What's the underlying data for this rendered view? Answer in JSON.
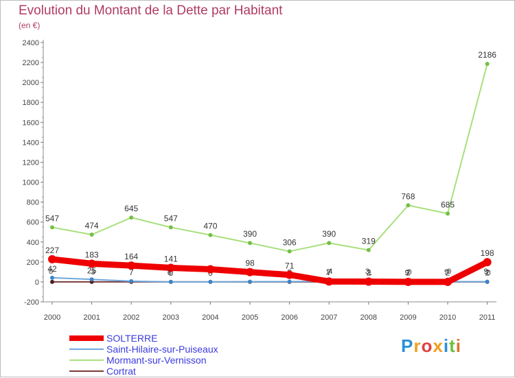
{
  "title": "Evolution du Montant de la Dette par Habitant",
  "unit": "(en €)",
  "logo": {
    "letters": [
      {
        "ch": "P",
        "color": "#2a8fd6"
      },
      {
        "ch": "r",
        "color": "#f0a020"
      },
      {
        "ch": "o",
        "color": "#e04040"
      },
      {
        "ch": "x",
        "color": "#f0a020"
      },
      {
        "ch": "i",
        "color": "#2a8fd6"
      },
      {
        "ch": "t",
        "color": "#6cbf3a"
      },
      {
        "ch": "i",
        "color": "#e07030"
      }
    ]
  },
  "chart_data": {
    "type": "line",
    "title": "Evolution du Montant de la Dette par Habitant",
    "ylabel": "(en €)",
    "xlabel": "",
    "ylim": [
      -200,
      2400
    ],
    "yticks": [
      -200,
      0,
      200,
      400,
      600,
      800,
      1000,
      1200,
      1400,
      1600,
      1800,
      2000,
      2200,
      2400
    ],
    "categories": [
      "2000",
      "2001",
      "2002",
      "2003",
      "2004",
      "2005",
      "2006",
      "2007",
      "2008",
      "2009",
      "2010",
      "2011"
    ],
    "grid": false,
    "legend_position": "bottom-left",
    "series": [
      {
        "name": "Cortrat",
        "color": "#7a3a3a",
        "width": 2,
        "marker_color": "#4a1f1f",
        "values": [
          0,
          0,
          0,
          0,
          0,
          0,
          0,
          0,
          0,
          0,
          0,
          0
        ],
        "labels": false
      },
      {
        "name": "Saint-Hilaire-sur-Puiseaux",
        "color": "#6fa8dc",
        "width": 2,
        "marker_color": "#3d85c6",
        "values": [
          42,
          25,
          7,
          0,
          0,
          2,
          3,
          7,
          2,
          2,
          2,
          2
        ],
        "labels": [
          "42",
          "25",
          "7",
          "0",
          "0",
          "2",
          "3",
          "7",
          "2",
          "2",
          "2",
          "2"
        ]
      },
      {
        "name": "Mormant-sur-Vernisson",
        "color": "#a8e07c",
        "width": 2,
        "marker_color": "#74c043",
        "values": [
          547,
          474,
          645,
          547,
          470,
          390,
          306,
          390,
          319,
          768,
          685,
          2186
        ],
        "labels": [
          "547",
          "474",
          "645",
          "547",
          "470",
          "390",
          "306",
          "390",
          "319",
          "768",
          "685",
          "2186"
        ]
      },
      {
        "name": "SOLTERRE",
        "color": "#ee0000",
        "width": 9,
        "marker_color": "#ee0000",
        "values": [
          227,
          183,
          164,
          141,
          127,
          98,
          71,
          4,
          3,
          0,
          0,
          198
        ],
        "labels": [
          "227",
          "183",
          "164",
          "141",
          "",
          "98",
          "71",
          "",
          "",
          "",
          "",
          "198"
        ]
      }
    ],
    "extra_labels": [
      {
        "x": 0,
        "text": "0"
      },
      {
        "x": 1,
        "text": "3"
      },
      {
        "x": 3,
        "text": "6"
      },
      {
        "x": 7,
        "text": "4"
      },
      {
        "x": 7,
        "text": "1"
      },
      {
        "x": 8,
        "text": "1"
      },
      {
        "x": 8,
        "text": "3"
      },
      {
        "x": 9,
        "text": "0"
      },
      {
        "x": 9,
        "text": "9"
      },
      {
        "x": 10,
        "text": "0"
      },
      {
        "x": 10,
        "text": "9"
      },
      {
        "x": 11,
        "text": "0"
      },
      {
        "x": 11,
        "text": "9"
      }
    ]
  },
  "legend": [
    {
      "name": "SOLTERRE",
      "color": "#ee0000",
      "thickness": 8
    },
    {
      "name": "Saint-Hilaire-sur-Puiseaux",
      "color": "#6fa8dc",
      "thickness": 2
    },
    {
      "name": "Mormant-sur-Vernisson",
      "color": "#a8e07c",
      "thickness": 2
    },
    {
      "name": "Cortrat",
      "color": "#7a3a3a",
      "thickness": 2
    }
  ]
}
